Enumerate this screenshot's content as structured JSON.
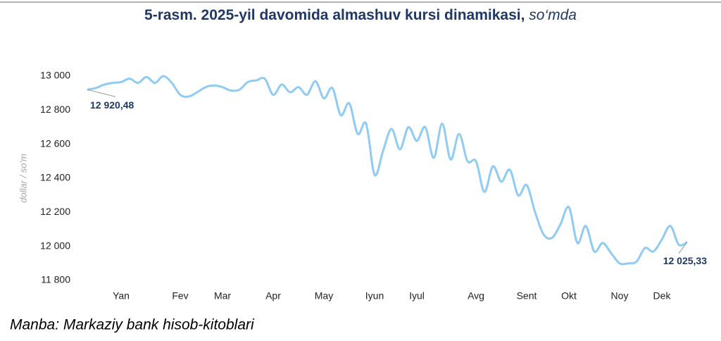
{
  "chart_data": {
    "type": "line",
    "title": "5-rasm. 2025-yil davomida almashuv kursi dinamikasi,",
    "title_unit": "so‘mda",
    "y_label": "dollar / so'm",
    "source": "Manba: Markaziy bank hisob-kitoblari",
    "color": "#8fcbf2",
    "categories": [
      null,
      null,
      null,
      null,
      "Yan",
      null,
      null,
      null,
      null,
      null,
      null,
      "Fev",
      null,
      null,
      null,
      null,
      "Mar",
      null,
      null,
      null,
      null,
      null,
      "Apr",
      null,
      null,
      null,
      null,
      null,
      "May",
      null,
      null,
      null,
      null,
      null,
      "Iyun",
      null,
      null,
      null,
      null,
      "Iyul",
      null,
      null,
      null,
      null,
      null,
      null,
      "Avg",
      null,
      null,
      null,
      null,
      null,
      "Sent",
      null,
      null,
      null,
      null,
      "Okt",
      null,
      null,
      null,
      null,
      null,
      "Noy",
      null,
      null,
      null,
      null,
      "Dek",
      null,
      null,
      null
    ],
    "values": [
      12920.48,
      12930,
      12950,
      12960,
      12965,
      12985,
      12960,
      12995,
      12960,
      13000,
      12960,
      12890,
      12880,
      12905,
      12935,
      12945,
      12935,
      12915,
      12920,
      12965,
      12975,
      12985,
      12890,
      12950,
      12905,
      12935,
      12890,
      12970,
      12870,
      12930,
      12770,
      12840,
      12660,
      12720,
      12420,
      12560,
      12690,
      12570,
      12700,
      12620,
      12700,
      12520,
      12720,
      12510,
      12660,
      12500,
      12500,
      12320,
      12470,
      12380,
      12450,
      12300,
      12360,
      12200,
      12070,
      12050,
      12130,
      12230,
      12020,
      12120,
      11970,
      12020,
      11960,
      11900,
      11900,
      11910,
      11990,
      11970,
      12040,
      12120,
      12010,
      12025.33
    ],
    "annotations": [
      "12 920,48",
      "12 025,33"
    ],
    "ylim": [
      11800,
      13000
    ],
    "yticks": [
      {
        "value": 11800,
        "label": "11 800"
      },
      {
        "value": 12000,
        "label": "12 000"
      },
      {
        "value": 12200,
        "label": "12 200"
      },
      {
        "value": 12400,
        "label": "12 400"
      },
      {
        "value": 12600,
        "label": "12 600"
      },
      {
        "value": 12800,
        "label": "12 800"
      },
      {
        "value": 13000,
        "label": "13 000"
      }
    ],
    "grid": false
  }
}
